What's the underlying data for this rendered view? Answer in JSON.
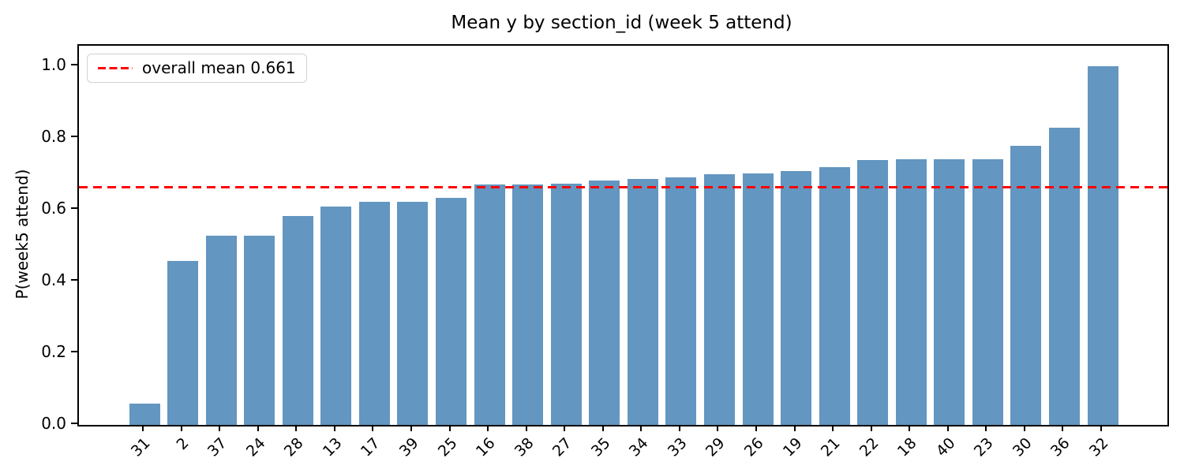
{
  "chart_data": {
    "type": "bar",
    "title": "Mean y by section_id (week 5 attend)",
    "ylabel": "P(week5 attend)",
    "xlabel": "",
    "categories": [
      "31",
      "2",
      "37",
      "24",
      "28",
      "13",
      "17",
      "39",
      "25",
      "16",
      "38",
      "27",
      "35",
      "34",
      "33",
      "29",
      "26",
      "19",
      "21",
      "22",
      "18",
      "40",
      "23",
      "30",
      "36",
      "32"
    ],
    "values": [
      0.06,
      0.456,
      0.526,
      0.526,
      0.581,
      0.609,
      0.621,
      0.621,
      0.632,
      0.669,
      0.67,
      0.672,
      0.68,
      0.686,
      0.69,
      0.699,
      0.7,
      0.706,
      0.717,
      0.738,
      0.74,
      0.74,
      0.741,
      0.778,
      0.828,
      1.0
    ],
    "overall_mean": 0.661,
    "legend_label": "overall mean 0.661",
    "legend_position": "upper left",
    "yticks": [
      0.0,
      0.2,
      0.4,
      0.6,
      0.8,
      1.0
    ],
    "ylim": [
      0.0,
      1.056
    ],
    "grid": false,
    "bar_color": "#6396c0",
    "mean_line_color": "#ff0000",
    "x_tick_rotation": 45
  }
}
